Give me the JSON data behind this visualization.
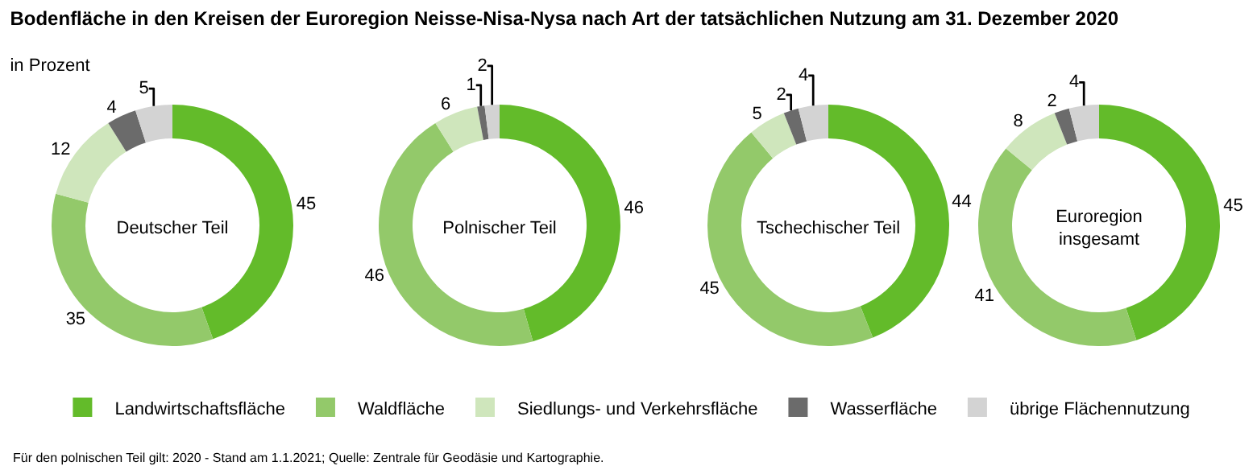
{
  "chart_data": [
    {
      "type": "donut",
      "title": "Bodenfläche in den Kreisen der Euroregion Neisse-Nisa-Nysa nach Art der tatsächlichen Nutzung am 31. Dezember 2020",
      "subtitle": "in Prozent",
      "categories": [
        "Landwirtschaftsfläche",
        "Waldfläche",
        "Siedlungs- und Verkehrsfläche",
        "Wasserfläche",
        "übrige Flächennutzung"
      ],
      "values": [
        45,
        35,
        12,
        4,
        5
      ],
      "colors": [
        "#63bb2a",
        "#93c96a",
        "#cfe6bc",
        "#6b6b6b",
        "#d3d3d3"
      ],
      "data_labels": true,
      "legend": "bottom",
      "annotations": [
        "Deutscher Teil",
        "Für den polnischen Teil gilt: 2020 - Stand am 1.1.2021; Quelle: Zentrale für Geodäsie und Kartographie."
      ]
    },
    {
      "type": "donut",
      "values": [
        46,
        46,
        6,
        1,
        2
      ],
      "colors": [
        "#63bb2a",
        "#93c96a",
        "#cfe6bc",
        "#6b6b6b",
        "#d3d3d3"
      ],
      "data_labels": true,
      "annotations": [
        "Polnischer Teil"
      ]
    },
    {
      "type": "donut",
      "values": [
        44,
        45,
        5,
        2,
        4
      ],
      "colors": [
        "#63bb2a",
        "#93c96a",
        "#cfe6bc",
        "#6b6b6b",
        "#d3d3d3"
      ],
      "data_labels": true,
      "annotations": [
        "Tschechischer Teil"
      ]
    },
    {
      "type": "donut",
      "values": [
        45,
        41,
        8,
        2,
        4
      ],
      "colors": [
        "#63bb2a",
        "#93c96a",
        "#cfe6bc",
        "#6b6b6b",
        "#d3d3d3"
      ],
      "data_labels": true,
      "annotations": [
        "Euroregion insgesamt"
      ]
    }
  ]
}
